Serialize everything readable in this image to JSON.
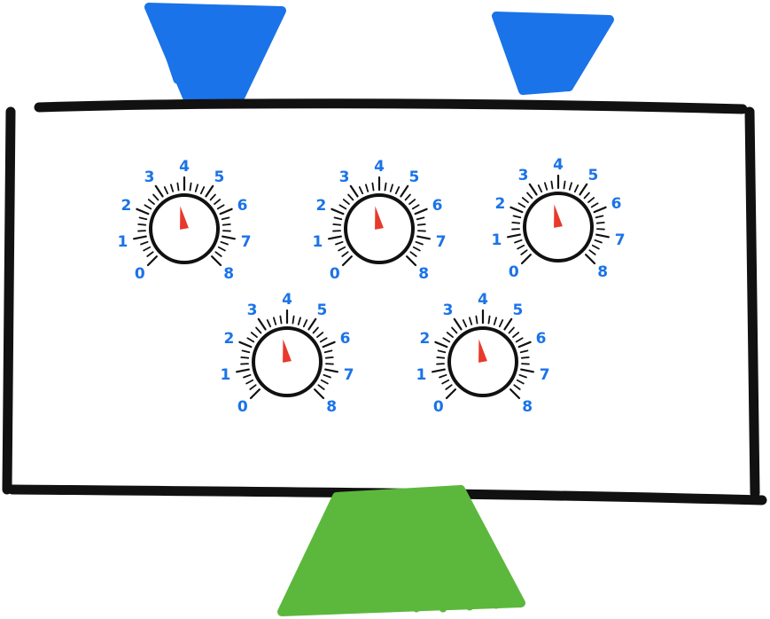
{
  "colors": {
    "outline": "#111111",
    "blue": "#1a73e8",
    "green": "#5cb83c",
    "pointer": "#e8392b",
    "background": "#ffffff"
  },
  "scale_labels": [
    "0",
    "1",
    "2",
    "3",
    "4",
    "5",
    "6",
    "7",
    "8"
  ],
  "knobs": [
    {
      "id": "knob-1",
      "value": 3.7
    },
    {
      "id": "knob-2",
      "value": 3.7
    },
    {
      "id": "knob-3",
      "value": 3.7
    },
    {
      "id": "knob-4",
      "value": 3.7
    },
    {
      "id": "knob-5",
      "value": 3.7
    }
  ],
  "shapes": {
    "top_left": "blue-funnel",
    "top_right": "blue-funnel",
    "bottom": "green-stand"
  }
}
